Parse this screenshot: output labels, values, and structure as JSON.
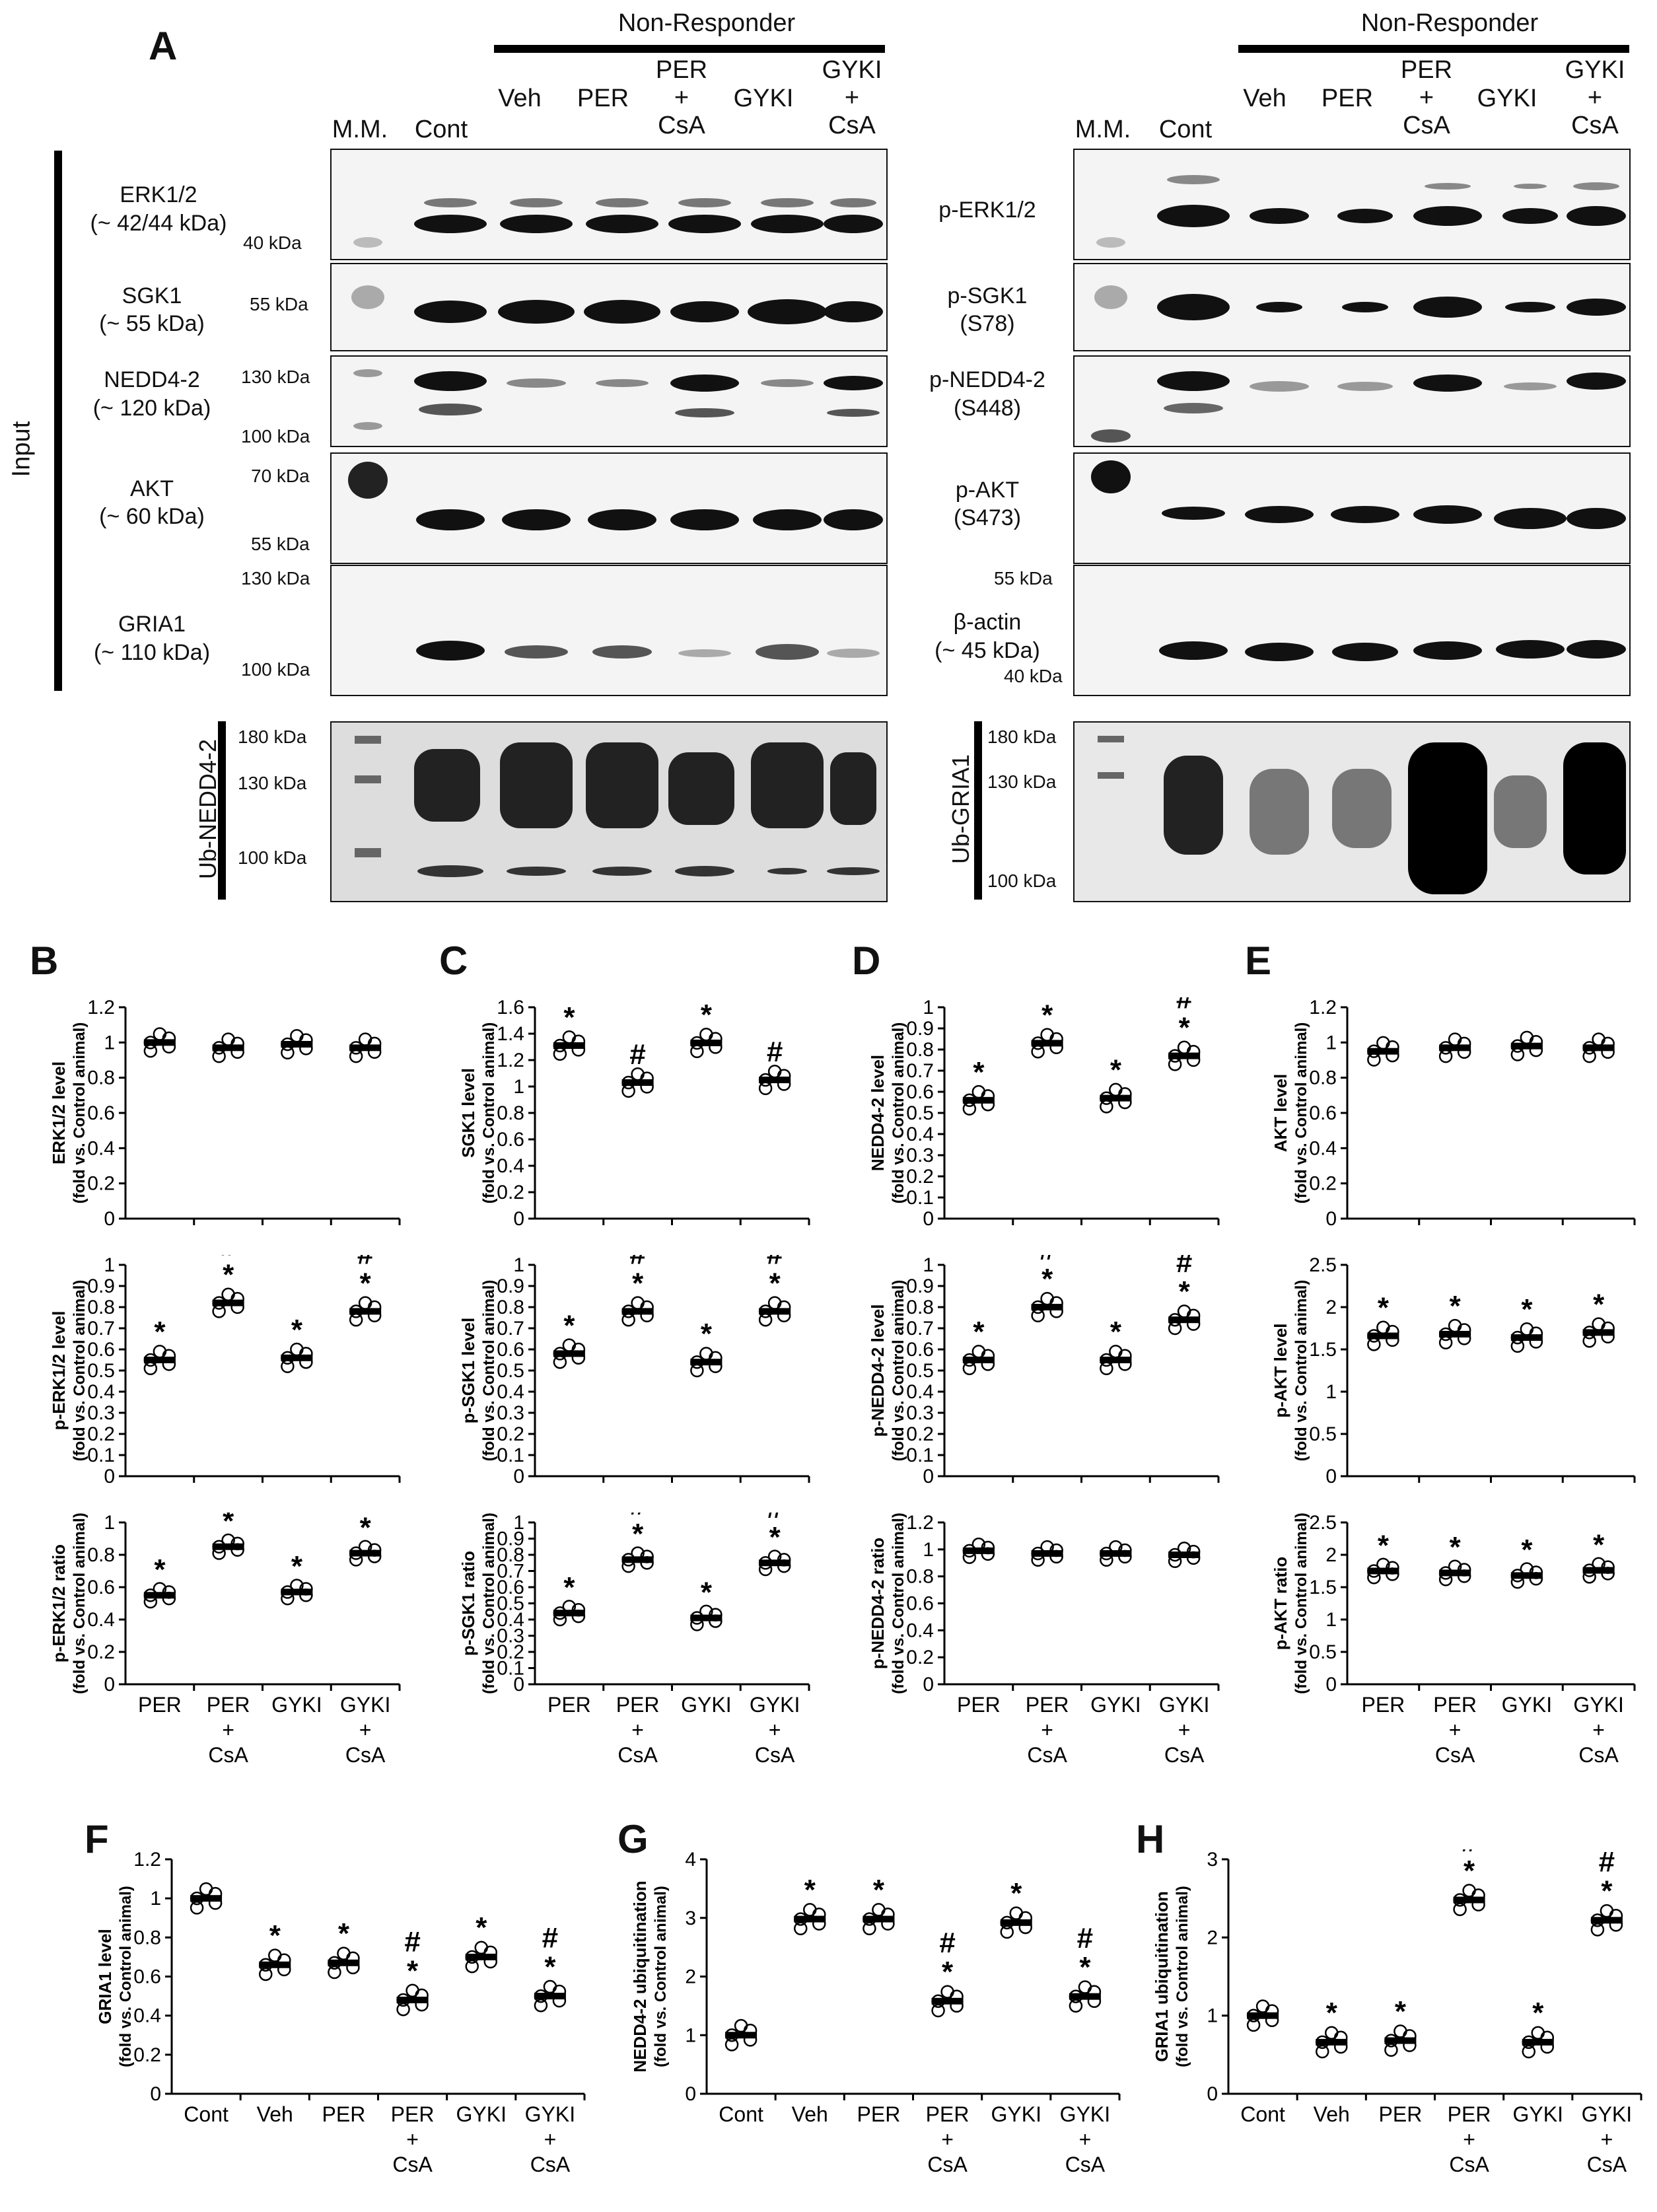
{
  "figure": {
    "panel_labels": [
      "A",
      "B",
      "C",
      "D",
      "E",
      "F",
      "G",
      "H"
    ],
    "group_title": "Non-Responder",
    "side_label": "Input",
    "lane_headers": {
      "mm": "M.M.",
      "cont": "Cont",
      "veh": "Veh",
      "per": "PER",
      "per_csa": "PER\n+\nCsA",
      "gyki": "GYKI",
      "gyki_csa": "GYKI\n+\nCsA"
    },
    "left_blots": [
      {
        "name": "ERK1/2",
        "sub": "(~ 42/44 kDa)",
        "markers": [
          "40 kDa"
        ]
      },
      {
        "name": "SGK1",
        "sub": "(~ 55 kDa)",
        "markers": [
          "55 kDa"
        ]
      },
      {
        "name": "NEDD4-2",
        "sub": "(~ 120 kDa)",
        "markers": [
          "130 kDa",
          "100 kDa"
        ]
      },
      {
        "name": "AKT",
        "sub": "(~ 60 kDa)",
        "markers": [
          "70 kDa",
          "55 kDa"
        ]
      },
      {
        "name": "GRIA1",
        "sub": "(~ 110 kDa)",
        "markers": [
          "130 kDa",
          "100 kDa"
        ]
      },
      {
        "name": "Ub-NEDD4-2",
        "sub": "",
        "markers": [
          "180 kDa",
          "130 kDa",
          "100 kDa"
        ]
      }
    ],
    "right_blots": [
      {
        "name": "p-ERK1/2",
        "sub": "",
        "markers": []
      },
      {
        "name": "p-SGK1",
        "sub": "(S78)",
        "markers": []
      },
      {
        "name": "p-NEDD4-2",
        "sub": "(S448)",
        "markers": []
      },
      {
        "name": "p-AKT",
        "sub": "(S473)",
        "markers": []
      },
      {
        "name": "β-actin",
        "sub": "(~ 45 kDa)",
        "markers": [
          "55 kDa",
          "40 kDa"
        ]
      },
      {
        "name": "Ub-GRIA1",
        "sub": "",
        "markers": [
          "180 kDa",
          "130 kDa",
          "100 kDa"
        ]
      }
    ]
  },
  "chart_data": [
    {
      "panel": "B",
      "type": "scatter",
      "ylabel": "ERK1/2 level",
      "ylabel2": "(fold vs. Control animal)",
      "ylim": [
        0,
        1.2
      ],
      "ticks": [
        "0",
        "0.2",
        "0.4",
        "0.6",
        "0.8",
        "1",
        "1.2"
      ],
      "categories": [
        "PER",
        "PER\n+\nCsA",
        "GYKI",
        "GYKI\n+\nCsA"
      ],
      "means": [
        1.0,
        0.97,
        0.99,
        0.97
      ],
      "marks": [
        "",
        "",
        "",
        ""
      ]
    },
    {
      "panel": "B",
      "type": "scatter",
      "ylabel": "p-ERK1/2 level",
      "ylabel2": "(fold vs. Control animal)",
      "ylim": [
        0,
        1
      ],
      "ticks": [
        "0",
        "0.1",
        "0.2",
        "0.3",
        "0.4",
        "0.5",
        "0.6",
        "0.7",
        "0.8",
        "0.9",
        "1"
      ],
      "categories": [
        "PER",
        "PER\n+\nCsA",
        "GYKI",
        "GYKI\n+\nCsA"
      ],
      "means": [
        0.55,
        0.82,
        0.56,
        0.78
      ],
      "marks": [
        "*",
        "#*",
        "*",
        "#*"
      ]
    },
    {
      "panel": "B",
      "type": "scatter",
      "ylabel": "p-ERK1/2 ratio",
      "ylabel2": "(fold vs. Control animal)",
      "ylim": [
        0,
        1
      ],
      "ticks": [
        "0",
        "0.2",
        "0.4",
        "0.6",
        "0.8",
        "1"
      ],
      "categories": [
        "PER",
        "PER\n+\nCsA",
        "GYKI",
        "GYKI\n+\nCsA"
      ],
      "means": [
        0.55,
        0.85,
        0.57,
        0.81
      ],
      "marks": [
        "*",
        "#*",
        "*",
        "#*"
      ]
    },
    {
      "panel": "C",
      "type": "scatter",
      "ylabel": "SGK1 level",
      "ylabel2": "(fold vs. Control animal)",
      "ylim": [
        0,
        1.6
      ],
      "ticks": [
        "0",
        "0.2",
        "0.4",
        "0.6",
        "0.8",
        "1",
        "1.2",
        "1.4",
        "1.6"
      ],
      "categories": [
        "PER",
        "PER\n+\nCsA",
        "GYKI",
        "GYKI\n+\nCsA"
      ],
      "means": [
        1.31,
        1.03,
        1.33,
        1.05
      ],
      "marks": [
        "*",
        "#",
        "*",
        "#"
      ]
    },
    {
      "panel": "C",
      "type": "scatter",
      "ylabel": "p-SGK1 level",
      "ylabel2": "(fold vs. Control animal)",
      "ylim": [
        0,
        1
      ],
      "ticks": [
        "0",
        "0.1",
        "0.2",
        "0.3",
        "0.4",
        "0.5",
        "0.6",
        "0.7",
        "0.8",
        "0.9",
        "1"
      ],
      "categories": [
        "PER",
        "PER\n+\nCsA",
        "GYKI",
        "GYKI\n+\nCsA"
      ],
      "means": [
        0.58,
        0.78,
        0.54,
        0.78
      ],
      "marks": [
        "*",
        "#*",
        "*",
        "#*"
      ]
    },
    {
      "panel": "C",
      "type": "scatter",
      "ylabel": "p-SGK1 ratio",
      "ylabel2": "(fold vs. Control animal)",
      "ylim": [
        0,
        1
      ],
      "ticks": [
        "0",
        "0.1",
        "0.2",
        "0.3",
        "0.4",
        "0.5",
        "0.6",
        "0.7",
        "0.8",
        "0.9",
        "1"
      ],
      "categories": [
        "PER",
        "PER\n+\nCsA",
        "GYKI",
        "GYKI\n+\nCsA"
      ],
      "means": [
        0.44,
        0.77,
        0.41,
        0.75
      ],
      "marks": [
        "*",
        "#*",
        "*",
        "#*"
      ]
    },
    {
      "panel": "D",
      "type": "scatter",
      "ylabel": "NEDD4-2 level",
      "ylabel2": "(fold vs. Control animal)",
      "ylim": [
        0,
        1
      ],
      "ticks": [
        "0",
        "0.1",
        "0.2",
        "0.3",
        "0.4",
        "0.5",
        "0.6",
        "0.7",
        "0.8",
        "0.9",
        "1"
      ],
      "categories": [
        "PER",
        "PER\n+\nCsA",
        "GYKI",
        "GYKI\n+\nCsA"
      ],
      "means": [
        0.56,
        0.83,
        0.57,
        0.77
      ],
      "marks": [
        "*",
        "#*",
        "*",
        "#*"
      ]
    },
    {
      "panel": "D",
      "type": "scatter",
      "ylabel": "p-NEDD4-2 level",
      "ylabel2": "(fold vs. Control animal)",
      "ylim": [
        0,
        1
      ],
      "ticks": [
        "0",
        "0.1",
        "0.2",
        "0.3",
        "0.4",
        "0.5",
        "0.6",
        "0.7",
        "0.8",
        "0.9",
        "1"
      ],
      "categories": [
        "PER",
        "PER\n+\nCsA",
        "GYKI",
        "GYKI\n+\nCsA"
      ],
      "means": [
        0.55,
        0.8,
        0.55,
        0.74
      ],
      "marks": [
        "*",
        "#*",
        "*",
        "#*"
      ]
    },
    {
      "panel": "D",
      "type": "scatter",
      "ylabel": "p-NEDD4-2 ratio",
      "ylabel2": "(fold vs. Control animal)",
      "ylim": [
        0,
        1.2
      ],
      "ticks": [
        "0",
        "0.2",
        "0.4",
        "0.6",
        "0.8",
        "1",
        "1.2"
      ],
      "categories": [
        "PER",
        "PER\n+\nCsA",
        "GYKI",
        "GYKI\n+\nCsA"
      ],
      "means": [
        0.99,
        0.97,
        0.97,
        0.96
      ],
      "marks": [
        "",
        "",
        "",
        ""
      ]
    },
    {
      "panel": "E",
      "type": "scatter",
      "ylabel": "AKT level",
      "ylabel2": "(fold vs. Control animal)",
      "ylim": [
        0,
        1.2
      ],
      "ticks": [
        "0",
        "0.2",
        "0.4",
        "0.6",
        "0.8",
        "1",
        "1.2"
      ],
      "categories": [
        "PER",
        "PER\n+\nCsA",
        "GYKI",
        "GYKI\n+\nCsA"
      ],
      "means": [
        0.95,
        0.97,
        0.98,
        0.97
      ],
      "marks": [
        "",
        "",
        "",
        ""
      ]
    },
    {
      "panel": "E",
      "type": "scatter",
      "ylabel": "p-AKT level",
      "ylabel2": "(fold vs. Control animal)",
      "ylim": [
        0,
        2.5
      ],
      "ticks": [
        "0",
        "0.5",
        "1",
        "1.5",
        "2",
        "2.5"
      ],
      "categories": [
        "PER",
        "PER\n+\nCsA",
        "GYKI",
        "GYKI\n+\nCsA"
      ],
      "means": [
        1.66,
        1.68,
        1.64,
        1.7
      ],
      "marks": [
        "*",
        "*",
        "*",
        "*"
      ]
    },
    {
      "panel": "E",
      "type": "scatter",
      "ylabel": "p-AKT ratio",
      "ylabel2": "(fold vs. Control animal)",
      "ylim": [
        0,
        2.5
      ],
      "ticks": [
        "0",
        "0.5",
        "1",
        "1.5",
        "2",
        "2.5"
      ],
      "categories": [
        "PER",
        "PER\n+\nCsA",
        "GYKI",
        "GYKI\n+\nCsA"
      ],
      "means": [
        1.75,
        1.72,
        1.68,
        1.76
      ],
      "marks": [
        "*",
        "*",
        "*",
        "*"
      ]
    },
    {
      "panel": "F",
      "type": "scatter",
      "ylabel": "GRIA1 level",
      "ylabel2": "(fold vs. Control animal)",
      "ylim": [
        0,
        1.2
      ],
      "ticks": [
        "0",
        "0.2",
        "0.4",
        "0.6",
        "0.8",
        "1",
        "1.2"
      ],
      "categories": [
        "Cont",
        "Veh",
        "PER",
        "PER\n+\nCsA",
        "GYKI",
        "GYKI\n+\nCsA"
      ],
      "means": [
        1.0,
        0.66,
        0.67,
        0.48,
        0.7,
        0.5
      ],
      "marks": [
        "",
        "*",
        "*",
        "#*",
        "*",
        "#*"
      ]
    },
    {
      "panel": "G",
      "type": "scatter",
      "ylabel": "NEDD4-2 ubiquitination",
      "ylabel2": "(fold vs. Control animal)",
      "ylim": [
        0,
        4
      ],
      "ticks": [
        "0",
        "1",
        "2",
        "3",
        "4"
      ],
      "categories": [
        "Cont",
        "Veh",
        "PER",
        "PER\n+\nCsA",
        "GYKI",
        "GYKI\n+\nCsA"
      ],
      "means": [
        1.0,
        2.98,
        2.98,
        1.58,
        2.92,
        1.66
      ],
      "marks": [
        "",
        "*",
        "*",
        "#*",
        "*",
        "#*"
      ]
    },
    {
      "panel": "H",
      "type": "scatter",
      "ylabel": "GRIA1 ubiquitination",
      "ylabel2": "(fold vs. Control animal)",
      "ylim": [
        0,
        3
      ],
      "ticks": [
        "0",
        "1",
        "2",
        "3"
      ],
      "categories": [
        "Cont",
        "Veh",
        "PER",
        "PER\n+\nCsA",
        "GYKI",
        "GYKI\n+\nCsA"
      ],
      "means": [
        1.0,
        0.66,
        0.68,
        2.48,
        0.66,
        2.22
      ],
      "marks": [
        "",
        "*",
        "*",
        "#*",
        "*",
        "#*"
      ]
    }
  ]
}
